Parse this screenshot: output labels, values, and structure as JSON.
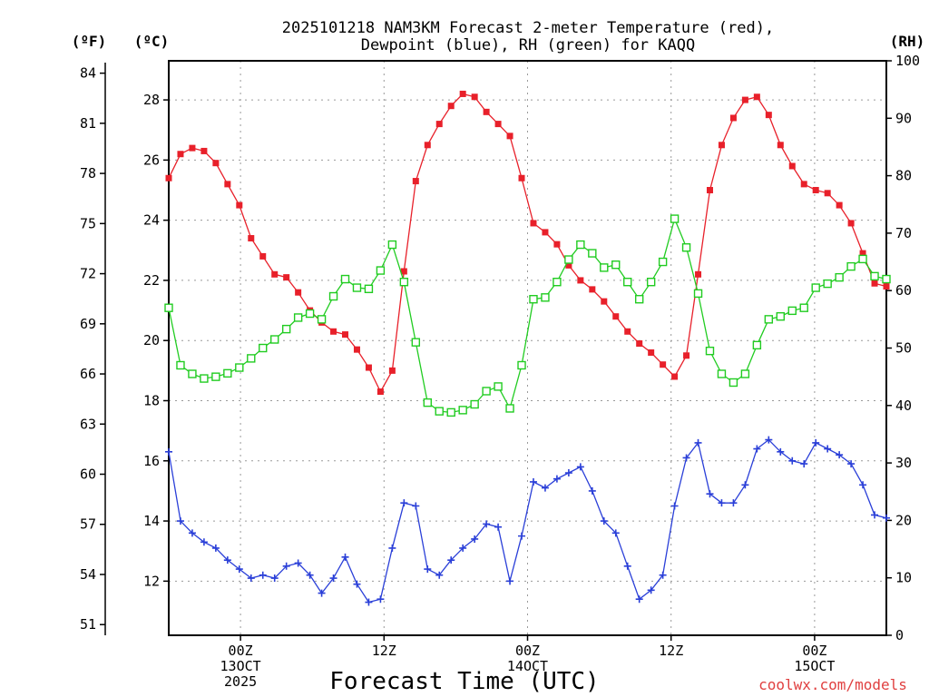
{
  "chart_data": {
    "type": "line",
    "title_line1": "2025101218 NAM3KM Forecast 2-meter Temperature (red),",
    "title_line2": "Dewpoint (blue), RH (green) for KAQQ",
    "xlabel": "Forecast Time (UTC)",
    "credit": "coolwx.com/models",
    "units": {
      "left_outer": "(ºF)",
      "left_inner": "(ºC)",
      "right": "(RH)"
    },
    "x_range_hours": [
      0,
      60
    ],
    "c_range": [
      10.2,
      29.3
    ],
    "rh_range": [
      0,
      100
    ],
    "fahrenheit_ticks": [
      51,
      54,
      57,
      60,
      63,
      66,
      69,
      72,
      75,
      78,
      81,
      84
    ],
    "celsius_ticks": [
      12,
      14,
      16,
      18,
      20,
      22,
      24,
      26,
      28
    ],
    "rh_ticks": [
      0,
      10,
      20,
      30,
      40,
      50,
      60,
      70,
      80,
      90,
      100
    ],
    "x_ticks": [
      {
        "hour": 6,
        "labels": [
          "00Z",
          "13OCT",
          "2025"
        ]
      },
      {
        "hour": 18,
        "labels": [
          "12Z"
        ]
      },
      {
        "hour": 30,
        "labels": [
          "00Z",
          "14OCT"
        ]
      },
      {
        "hour": 42,
        "labels": [
          "12Z"
        ]
      },
      {
        "hour": 54,
        "labels": [
          "00Z",
          "15OCT"
        ]
      }
    ],
    "series": [
      {
        "name": "2-meter Temperature",
        "unit": "C",
        "color": "#e8202a",
        "marker": "filled-square",
        "values": [
          25.4,
          26.2,
          26.4,
          26.3,
          25.9,
          25.2,
          24.5,
          23.4,
          22.8,
          22.2,
          22.1,
          21.6,
          21.0,
          20.6,
          20.3,
          20.2,
          19.7,
          19.1,
          18.3,
          19.0,
          22.3,
          25.3,
          26.5,
          27.2,
          27.8,
          28.2,
          28.1,
          27.6,
          27.2,
          26.8,
          25.4,
          23.9,
          23.6,
          23.2,
          22.5,
          22.0,
          21.7,
          21.3,
          20.8,
          20.3,
          19.9,
          19.6,
          19.2,
          18.8,
          19.5,
          22.2,
          25.0,
          26.5,
          27.4,
          28.0,
          28.1,
          27.5,
          26.5,
          25.8,
          25.2,
          25.0,
          24.9,
          24.5,
          23.9,
          22.9,
          21.9,
          21.8
        ]
      },
      {
        "name": "Dewpoint",
        "unit": "C",
        "color": "#2a3fd8",
        "marker": "plus",
        "values": [
          16.3,
          14.0,
          13.6,
          13.3,
          13.1,
          12.7,
          12.4,
          12.1,
          12.2,
          12.1,
          12.5,
          12.6,
          12.2,
          11.6,
          12.1,
          12.8,
          11.9,
          11.3,
          11.4,
          13.1,
          14.6,
          14.5,
          12.4,
          12.2,
          12.7,
          13.1,
          13.4,
          13.9,
          13.8,
          12.0,
          13.5,
          15.3,
          15.1,
          15.4,
          15.6,
          15.8,
          15.0,
          14.0,
          13.6,
          12.5,
          11.4,
          11.7,
          12.2,
          14.5,
          16.1,
          16.6,
          14.9,
          14.6,
          14.6,
          15.2,
          16.4,
          16.7,
          16.3,
          16.0,
          15.9,
          16.6,
          16.4,
          16.2,
          15.9,
          15.2,
          14.2,
          14.1
        ]
      },
      {
        "name": "Relative Humidity",
        "unit": "%",
        "color": "#21cc21",
        "marker": "open-square",
        "values": [
          57,
          47,
          45.5,
          44.7,
          45,
          45.6,
          46.6,
          48.2,
          50,
          51.5,
          53.3,
          55.3,
          56,
          55,
          59,
          62,
          60.5,
          60.3,
          63.5,
          68,
          61.5,
          51,
          40.5,
          39,
          38.8,
          39.2,
          40.2,
          42.5,
          43.3,
          39.5,
          47,
          58.5,
          58.8,
          61.5,
          65.4,
          68,
          66.5,
          64,
          64.5,
          61.5,
          58.5,
          61.5,
          65,
          72.5,
          67.5,
          59.5,
          49.5,
          45.5,
          44,
          45.5,
          50.5,
          55,
          55.5,
          56.5,
          57,
          60.5,
          61.2,
          62.3,
          64.2,
          65.5,
          62.5,
          62
        ]
      }
    ]
  }
}
